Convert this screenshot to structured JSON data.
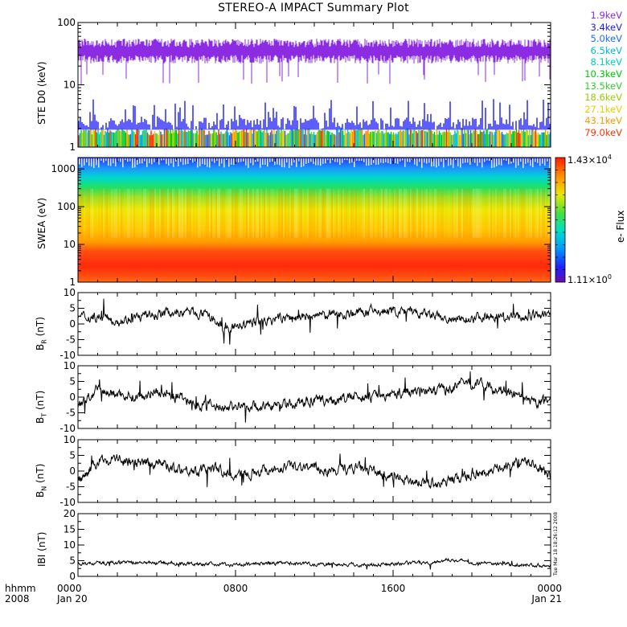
{
  "title": "STEREO-A IMPACT Summary Plot",
  "stamp": "Tue Mar 18 18:26:12 2008",
  "time_axis": {
    "corner_top": "hhmm",
    "corner_bottom": "2008",
    "ticks": [
      {
        "hhmm": "0000",
        "date": "Jan 20"
      },
      {
        "hhmm": "0800",
        "date": ""
      },
      {
        "hhmm": "1600",
        "date": ""
      },
      {
        "hhmm": "0000",
        "date": "Jan 21"
      }
    ]
  },
  "colorbar": {
    "label": "e- Flux",
    "max_label_base": "1.43×10",
    "max_label_exp": "4",
    "min_label_base": "1.11×10",
    "min_label_exp": "0"
  },
  "chart_data": [
    {
      "type": "line",
      "panel": "ste",
      "ylabel": "STE D0 (keV)",
      "yscale": "log",
      "ylim": [
        1,
        100
      ],
      "yticks": [
        "1",
        "10",
        "100"
      ],
      "xlim_hours": [
        0,
        24
      ],
      "series": [
        {
          "name": "1.9keV",
          "color": "#8b2be2",
          "level_range": [
            15,
            55
          ]
        },
        {
          "name": "3.4keV",
          "color": "#1a1aff",
          "level_range": [
            1.9,
            3.0
          ]
        },
        {
          "name": "5.0keV",
          "color": "#1e6bff"
        },
        {
          "name": "6.5keV",
          "color": "#00bcd4"
        },
        {
          "name": "8.1keV",
          "color": "#00d2b4"
        },
        {
          "name": "10.3keV",
          "color": "#00c800"
        },
        {
          "name": "13.5keV",
          "color": "#33cc33"
        },
        {
          "name": "18.6keV",
          "color": "#99cc00"
        },
        {
          "name": "27.1keV",
          "color": "#e6d000"
        },
        {
          "name": "43.1keV",
          "color": "#ff9900"
        },
        {
          "name": "79.0keV",
          "color": "#ff3300"
        }
      ]
    },
    {
      "type": "heatmap",
      "panel": "swea",
      "ylabel": "SWEA (eV)",
      "yscale": "log",
      "ylim": [
        1,
        2000
      ],
      "yticks": [
        "1",
        "10",
        "100",
        "1000"
      ],
      "xlim_hours": [
        0,
        24
      ],
      "zlim": [
        1.11,
        14300
      ],
      "zlabel": "e- Flux"
    },
    {
      "type": "line",
      "panel": "br",
      "ylabel": "BR (nT)",
      "ylabel_main": "B",
      "ylabel_sub": "R",
      "ylabel_unit": "(nT)",
      "ylim": [
        -10,
        10
      ],
      "yticks": [
        "-10",
        "-5",
        "0",
        "5",
        "10"
      ],
      "xlim_hours": [
        0,
        24
      ],
      "x": [
        0,
        1,
        2,
        3,
        4,
        5,
        6,
        7,
        7.5,
        8,
        9,
        10,
        11,
        12,
        13,
        14,
        15,
        16,
        17,
        18,
        19,
        20,
        21,
        22,
        23,
        24
      ],
      "values": [
        2,
        2.5,
        1,
        2,
        3,
        4,
        3.5,
        1,
        -2.5,
        -1,
        0.5,
        1.5,
        2,
        2.5,
        3,
        3.5,
        4,
        4,
        3.5,
        2.5,
        1,
        2,
        3,
        2,
        2.5,
        3
      ]
    },
    {
      "type": "line",
      "panel": "bt",
      "ylabel": "BT (nT)",
      "ylabel_main": "B",
      "ylabel_sub": "T",
      "ylabel_unit": "(nT)",
      "ylim": [
        -10,
        10
      ],
      "yticks": [
        "-10",
        "-5",
        "0",
        "5",
        "10"
      ],
      "xlim_hours": [
        0,
        24
      ],
      "x": [
        0,
        1,
        2,
        3,
        4,
        5,
        6,
        7,
        8,
        9,
        10,
        11,
        12,
        13,
        14,
        15,
        16,
        17,
        18,
        19,
        20,
        21,
        22,
        23,
        24
      ],
      "values": [
        -3,
        2,
        1,
        0,
        2,
        0,
        -2,
        -3,
        -3,
        -3,
        -3,
        -2,
        -1,
        -1,
        0,
        0,
        1,
        2,
        2,
        3,
        5,
        3,
        1,
        -2,
        -1
      ]
    },
    {
      "type": "line",
      "panel": "bn",
      "ylabel": "BN (nT)",
      "ylabel_main": "B",
      "ylabel_sub": "N",
      "ylabel_unit": "(nT)",
      "ylim": [
        -10,
        10
      ],
      "yticks": [
        "-10",
        "-5",
        "0",
        "5",
        "10"
      ],
      "xlim_hours": [
        0,
        24
      ],
      "x": [
        0,
        1,
        2,
        3,
        4,
        5,
        6,
        7,
        8,
        9,
        10,
        11,
        12,
        13,
        14,
        15,
        16,
        17,
        18,
        19,
        20,
        21,
        22,
        23,
        24
      ],
      "values": [
        -3,
        3,
        4,
        2,
        3,
        1,
        0,
        1,
        -2,
        0,
        1,
        2,
        1,
        0,
        1,
        0,
        -2,
        -3,
        -4,
        -3,
        -1,
        0,
        2,
        3,
        -2
      ]
    },
    {
      "type": "line",
      "panel": "bmag",
      "ylabel": "|B| (nT)",
      "ylabel_main": "IBI",
      "ylabel_unit": "(nT)",
      "ylim": [
        0,
        20
      ],
      "yticks": [
        "0",
        "5",
        "10",
        "15",
        "20"
      ],
      "xlim_hours": [
        0,
        24
      ],
      "x": [
        0,
        2,
        4,
        6,
        8,
        10,
        12,
        14,
        16,
        18,
        19,
        20,
        22,
        24
      ],
      "values": [
        4,
        4.5,
        4.3,
        4,
        3.8,
        4.2,
        4.0,
        3.7,
        3.9,
        4.5,
        5.5,
        4.5,
        3.8,
        3.5
      ]
    }
  ]
}
